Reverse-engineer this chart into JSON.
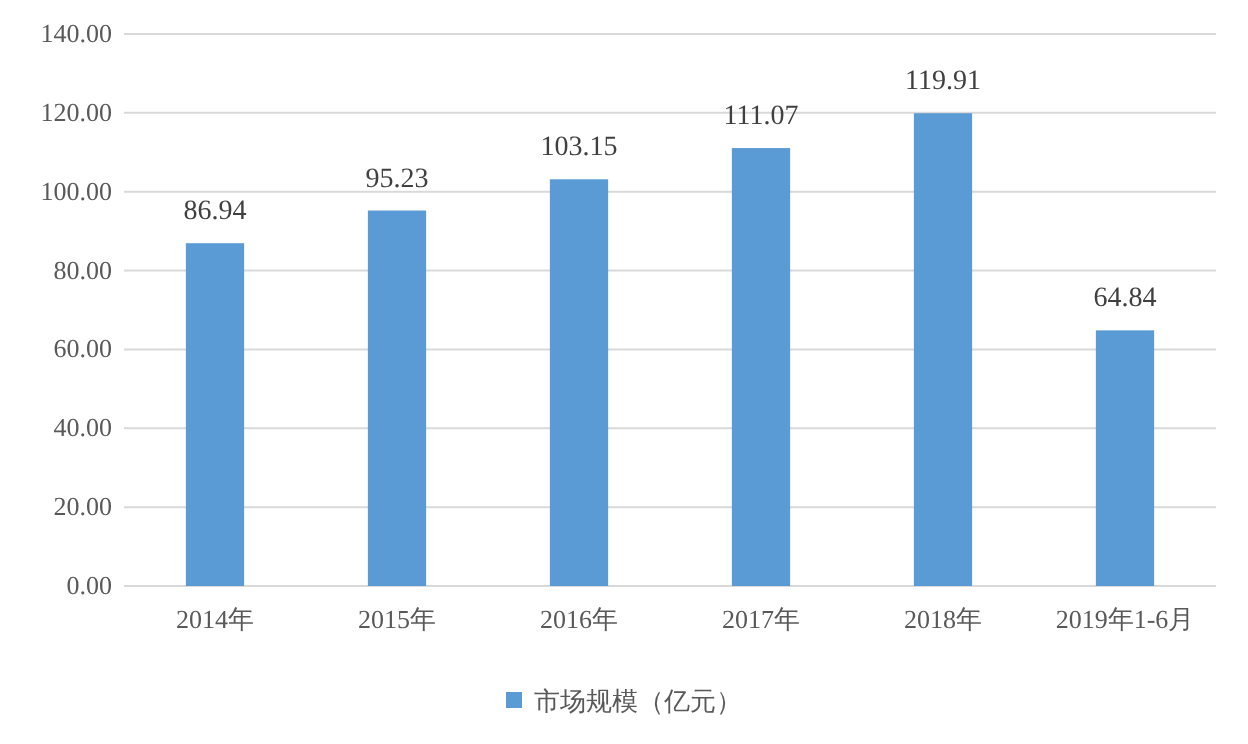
{
  "chart_data": {
    "type": "bar",
    "categories": [
      "2014年",
      "2015年",
      "2016年",
      "2017年",
      "2018年",
      "2019年1-6月"
    ],
    "series": [
      {
        "name": "市场规模（亿元）",
        "color": "#5b9bd5",
        "values": [
          86.94,
          95.23,
          103.15,
          111.07,
          119.91,
          64.84
        ]
      }
    ],
    "ylim": [
      0,
      140
    ],
    "yticks": [
      {
        "value": 0,
        "label": "0.00"
      },
      {
        "value": 20,
        "label": "20.00"
      },
      {
        "value": 40,
        "label": "40.00"
      },
      {
        "value": 60,
        "label": "60.00"
      },
      {
        "value": 80,
        "label": "80.00"
      },
      {
        "value": 100,
        "label": "100.00"
      },
      {
        "value": 120,
        "label": "120.00"
      },
      {
        "value": 140,
        "label": "140.00"
      }
    ],
    "grid": "y",
    "legend": "bottom",
    "data_labels": true
  }
}
